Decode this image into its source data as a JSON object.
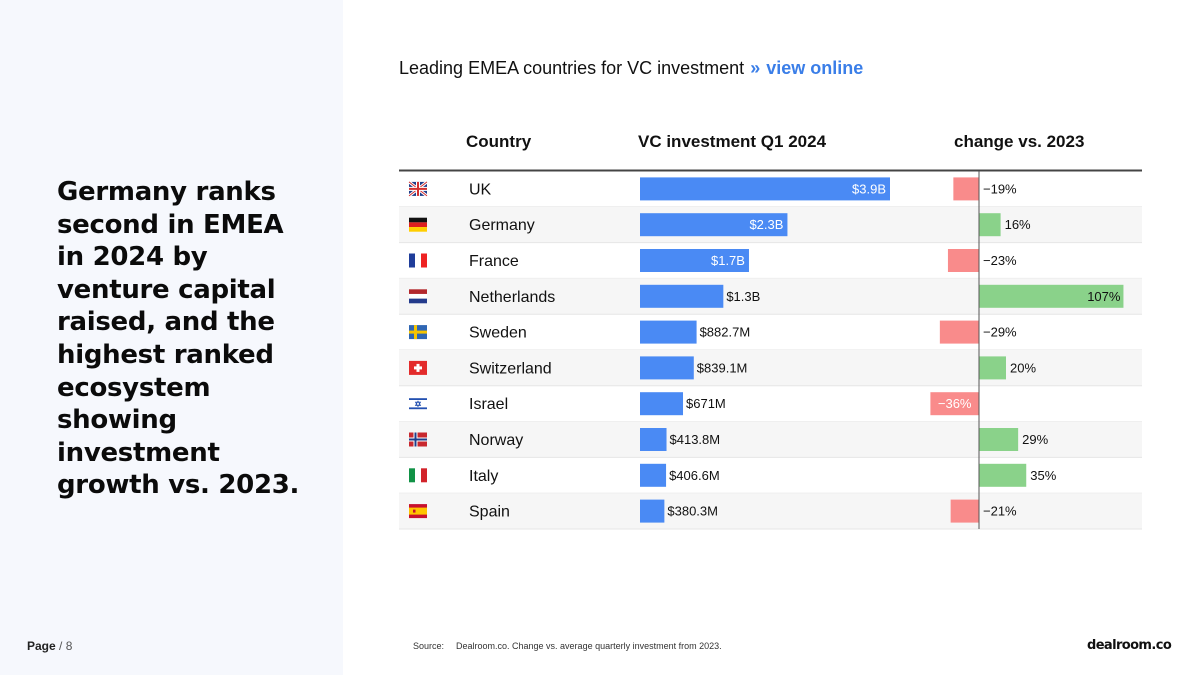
{
  "headline": "Germany ranks second in EMEA in 2024 by venture capital raised, and the highest ranked ecosystem showing investment growth vs. 2023.",
  "page": {
    "label": "Page",
    "separator": "/",
    "number": "8"
  },
  "chart_title": {
    "text": "Leading EMEA countries for VC investment",
    "separator": "»",
    "link_label": "view online"
  },
  "source": {
    "label": "Source:",
    "text": "Dealroom.co. Change vs. average quarterly investment from 2023."
  },
  "brand": {
    "name": "dealroom",
    "suffix": ".co"
  },
  "colors": {
    "bar_blue": "#4a8af4",
    "positive_green": "#8ad28a",
    "negative_red": "#f98b8b",
    "row_alt": "#f6f6f6",
    "accent_link": "#3a7ee8"
  },
  "chart_data": {
    "type": "table",
    "columns": [
      "Country",
      "VC investment Q1 2024",
      "change vs. 2023"
    ],
    "rows": [
      {
        "flag": "uk-flag-icon",
        "country": "UK",
        "investment": 3.9,
        "investment_label": "$3.9B",
        "change": -19,
        "change_label": "−19%"
      },
      {
        "flag": "germany-flag-icon",
        "country": "Germany",
        "investment": 2.3,
        "investment_label": "$2.3B",
        "change": 16,
        "change_label": "16%"
      },
      {
        "flag": "france-flag-icon",
        "country": "France",
        "investment": 1.7,
        "investment_label": "$1.7B",
        "change": -23,
        "change_label": "−23%"
      },
      {
        "flag": "netherlands-flag-icon",
        "country": "Netherlands",
        "investment": 1.3,
        "investment_label": "$1.3B",
        "change": 107,
        "change_label": "107%"
      },
      {
        "flag": "sweden-flag-icon",
        "country": "Sweden",
        "investment": 0.8827,
        "investment_label": "$882.7M",
        "change": -29,
        "change_label": "−29%"
      },
      {
        "flag": "switzerland-flag-icon",
        "country": "Switzerland",
        "investment": 0.8391,
        "investment_label": "$839.1M",
        "change": 20,
        "change_label": "20%"
      },
      {
        "flag": "israel-flag-icon",
        "country": "Israel",
        "investment": 0.671,
        "investment_label": "$671M",
        "change": -36,
        "change_label": "−36%"
      },
      {
        "flag": "norway-flag-icon",
        "country": "Norway",
        "investment": 0.4138,
        "investment_label": "$413.8M",
        "change": 29,
        "change_label": "29%"
      },
      {
        "flag": "italy-flag-icon",
        "country": "Italy",
        "investment": 0.4066,
        "investment_label": "$406.6M",
        "change": 35,
        "change_label": "35%"
      },
      {
        "flag": "spain-flag-icon",
        "country": "Spain",
        "investment": 0.3803,
        "investment_label": "$380.3M",
        "change": -21,
        "change_label": "−21%"
      }
    ]
  }
}
